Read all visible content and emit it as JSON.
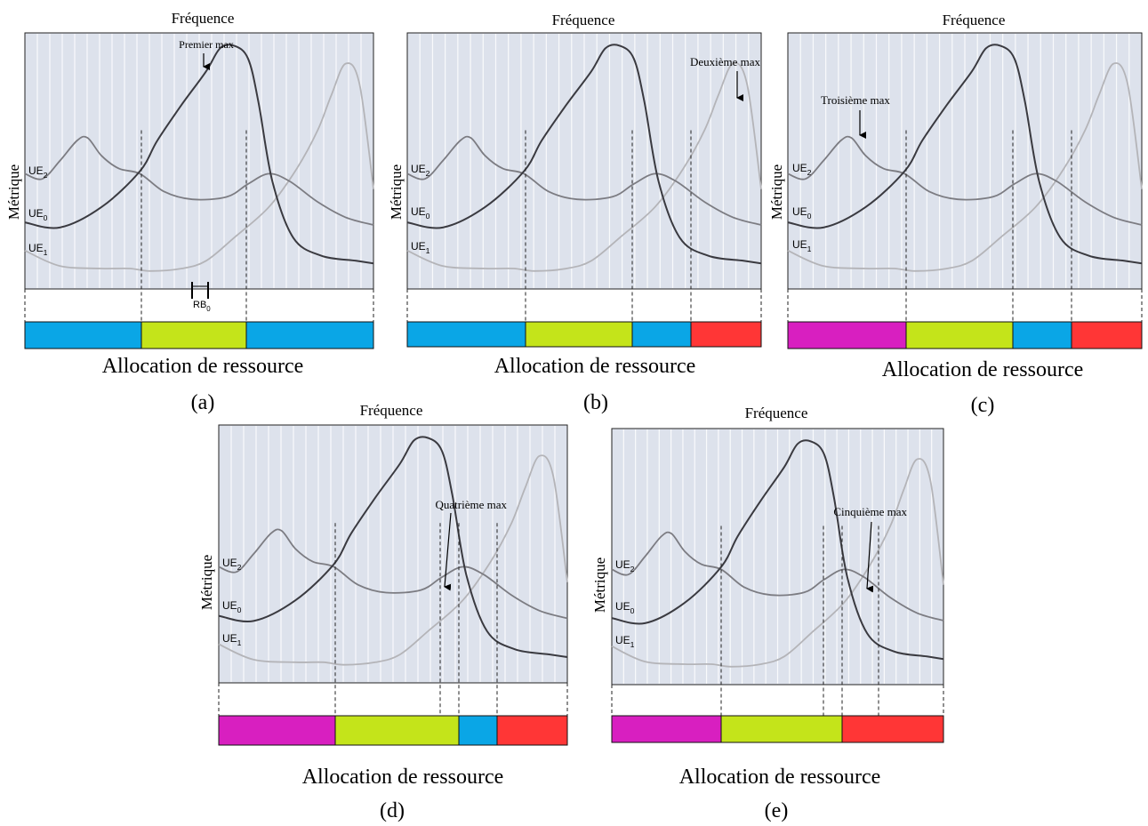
{
  "colors": {
    "panel_bg": "#dde2ec",
    "grid_line": "#ffffff",
    "ue0": "#3a3a40",
    "ue1": "#b4b4b8",
    "ue2": "#7c7c82",
    "alloc_blue": "#0aa6e6",
    "alloc_green": "#c4e41a",
    "alloc_red": "#ff3636",
    "alloc_magenta": "#d81fc0",
    "alloc_white": "#ffffff"
  },
  "common": {
    "frequency_label": "Fréquence",
    "metric_label": "Métrique",
    "allocation_label": "Allocation de ressource",
    "ue_labels": {
      "ue2": {
        "base": "UE",
        "sub": "2"
      },
      "ue0": {
        "base": "UE",
        "sub": "0"
      },
      "ue1": {
        "base": "UE",
        "sub": "1"
      }
    },
    "rb_label": {
      "base": "RB",
      "sub": "0"
    }
  },
  "panels": [
    {
      "id": "a",
      "caption": "(a)",
      "annotation": "Premier max",
      "allocation": [
        "blue",
        "green",
        "blue"
      ]
    },
    {
      "id": "b",
      "caption": "(b)",
      "annotation": "Deuxième max",
      "allocation": [
        "blue",
        "green",
        "blue",
        "red"
      ]
    },
    {
      "id": "c",
      "caption": "(c)",
      "annotation": "Troisième max",
      "allocation": [
        "magenta",
        "green",
        "blue",
        "red"
      ]
    },
    {
      "id": "d",
      "caption": "(d)",
      "annotation": "Quatrième max",
      "allocation": [
        "magenta",
        "green",
        "blue",
        "red"
      ]
    },
    {
      "id": "e",
      "caption": "(e)",
      "annotation": "Cinquième max",
      "allocation": [
        "magenta",
        "green",
        "red"
      ]
    }
  ]
}
